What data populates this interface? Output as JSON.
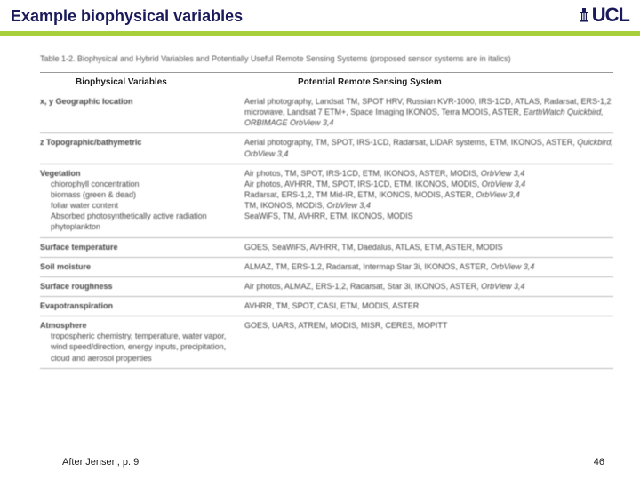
{
  "header": {
    "title": "Example biophysical variables",
    "logo_text": "UCL"
  },
  "table": {
    "caption": "Table 1-2.  Biophysical and Hybrid Variables and Potentially Useful Remote Sensing Systems (proposed sensor systems are in italics)",
    "col_left": "Biophysical Variables",
    "col_right": "Potential Remote Sensing System",
    "rows": [
      {
        "label_main": "x, y Geographic location",
        "label_subs": [],
        "value": "Aerial photography, Landsat TM, SPOT HRV, Russian KVR-1000, IRS-1CD, ATLAS, Radarsat, ERS-1,2 microwave, Landsat 7 ETM+, Space Imaging IKONOS, Terra MODIS, ASTER, <span class='em'>EarthWatch Quickbird, ORBIMAGE OrbView 3,4</span>"
      },
      {
        "label_main": "z Topographic/bathymetric",
        "label_subs": [],
        "value": "Aerial photography, TM, SPOT, IRS-1CD, Radarsat, LIDAR systems, ETM, IKONOS, ASTER, <span class='em'>Quickbird, OrbView 3,4</span>"
      },
      {
        "label_main": "Vegetation",
        "label_subs": [
          "chlorophyll concentration",
          "biomass (green &amp; dead)",
          "foliar water content",
          "Absorbed photosynthetically active radiation",
          "phytoplankton"
        ],
        "value": "Air photos, TM, SPOT, IRS-1CD, ETM, IKONOS, ASTER, MODIS, <span class='em'>OrbView 3,4</span><br>Air photos, AVHRR, TM, SPOT, IRS-1CD, ETM, IKONOS, MODIS, <span class='em'>OrbView 3,4</span><br>Radarsat, ERS-1,2, TM Mid-IR, ETM, IKONOS, MODIS, ASTER, <span class='em'>OrbView 3,4</span><br>TM, IKONOS, MODIS, <span class='em'>OrbView 3,4</span><br>SeaWiFS, TM, AVHRR, ETM, IKONOS, MODIS"
      },
      {
        "label_main": "Surface temperature",
        "label_subs": [],
        "value": "GOES, SeaWiFS, AVHRR, TM, Daedalus, ATLAS, ETM, ASTER, MODIS"
      },
      {
        "label_main": "Soil moisture",
        "label_subs": [],
        "value": "ALMAZ, TM, ERS-1,2, Radarsat, Intermap Star 3i, IKONOS, ASTER, <span class='em'>OrbView 3,4</span>"
      },
      {
        "label_main": "Surface roughness",
        "label_subs": [],
        "value": "Air photos, ALMAZ, ERS-1,2, Radarsat, Star 3i, IKONOS, ASTER, <span class='em'>OrbView 3,4</span>"
      },
      {
        "label_main": "Evapotranspiration",
        "label_subs": [],
        "value": "AVHRR, TM, SPOT, CASI, ETM, MODIS, ASTER"
      },
      {
        "label_main": "Atmosphere",
        "label_subs": [
          "tropospheric chemistry, temperature, water vapor, wind speed/direction, energy inputs, precipitation, cloud and aerosol properties"
        ],
        "value": "GOES, UARS, ATREM, MODIS, MISR, CERES, MOPITT"
      }
    ]
  },
  "footer": {
    "citation": "After Jensen, p. 9",
    "page": "46"
  }
}
